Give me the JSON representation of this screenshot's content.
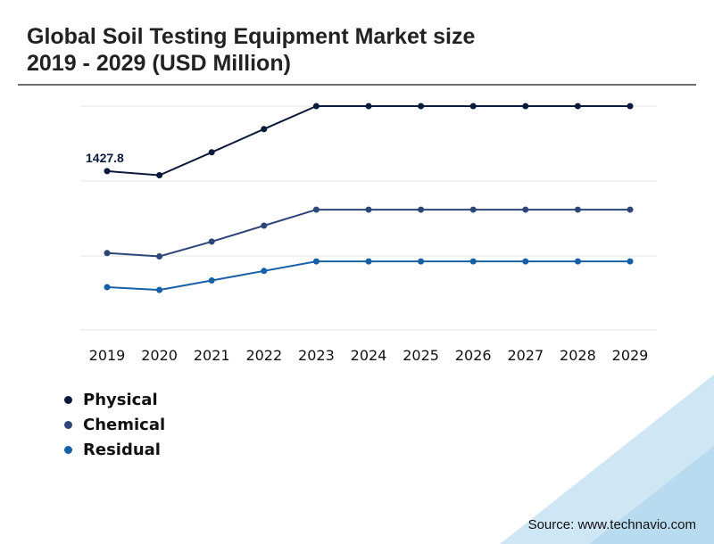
{
  "title": {
    "line1": "Global Soil Testing Equipment Market size",
    "line2": "2019 - 2029 (USD Million)"
  },
  "source": "Source: www.technavio.com",
  "colors": {
    "physical": "#0b1a3b",
    "chemical": "#2e4677",
    "residual": "#1660a8",
    "gridline": "#e6e6e6",
    "title_rule": "#6e6e6e",
    "accent_shape": "#cfe6f5"
  },
  "chart_data": {
    "type": "line",
    "categories": [
      "2019",
      "2020",
      "2021",
      "2022",
      "2023",
      "2024",
      "2025",
      "2026",
      "2027",
      "2028",
      "2029"
    ],
    "series": [
      {
        "name": "Physical",
        "values": [
          1427.8,
          1413,
          1495,
          1578,
          1660,
          1660,
          1660,
          1660,
          1660,
          1660,
          1660
        ]
      },
      {
        "name": "Chemical",
        "values": [
          1135,
          1123,
          1176,
          1233,
          1290,
          1290,
          1290,
          1290,
          1290,
          1290,
          1290
        ]
      },
      {
        "name": "Residual",
        "values": [
          1013,
          1003,
          1037,
          1071,
          1105,
          1105,
          1105,
          1105,
          1105,
          1105,
          1105
        ]
      }
    ],
    "data_labels": [
      {
        "series": "Physical",
        "category": "2019",
        "text": "1427.8"
      }
    ],
    "ylim": [
      860,
      1660
    ],
    "y_axis_labels": "hidden",
    "gridlines": "horizontal",
    "legend": "bottom-left"
  }
}
